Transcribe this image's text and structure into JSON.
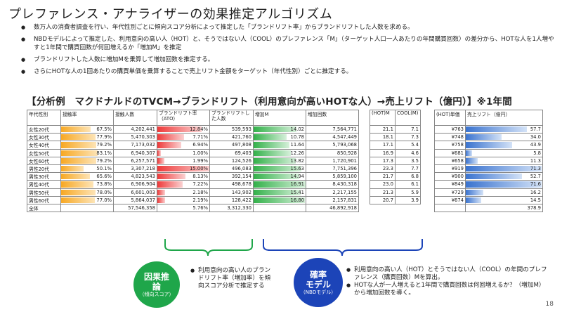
{
  "title": "プレファレンス・アナライザーの効果推定アルゴリズム",
  "bullets": [
    "数万人の消費者調査を行い、年代性別ごとに傾向スコア分析によって推定した「ブランドリフト率」からブランドリフトした人数を求める。",
    "NBDモデルによって推定した、利用意向の高い人（HOT）と、そうではない人（COOL）のプレファレンス「M」（ターゲット人口一人あたりの年間購買回数）の差分から、HOTな人を1人増やすと1年間で購買回数が何回増えるか「増加M」を推定",
    "ブランドリフトした人数に増加Mを乗算して増加回数を推定する。",
    "さらにHOTな人の1回あたりの購買単価を乗算することで売上リフト金額をターゲット（年代性別）ごとに推定する。"
  ],
  "subtitle": "【分析例　マクドナルドのTVCM→ブランドリフト（利用意向が高いHOTな人）→売上リフト（億円）】※1年間",
  "main_table": {
    "headers": [
      "年代性別",
      "接触率",
      "接触人数",
      "ブランドリフト率（ATO）",
      "ブランドリフトした人数",
      "増加M",
      "増加回数"
    ],
    "rows": [
      {
        "seg": "女性20代",
        "rate": "67.5%",
        "rate_v": 67.5,
        "reach": "4,202,441",
        "ato": "12.84%",
        "ato_v": 12.84,
        "lifted": "539,593",
        "incm": "14.02",
        "incm_v": 14.02,
        "count": "7,564,771"
      },
      {
        "seg": "女性30代",
        "rate": "77.9%",
        "rate_v": 77.9,
        "reach": "5,470,303",
        "ato": "7.71%",
        "ato_v": 7.71,
        "lifted": "421,760",
        "incm": "10.78",
        "incm_v": 10.78,
        "count": "4,547,449"
      },
      {
        "seg": "女性40代",
        "rate": "79.2%",
        "rate_v": 79.2,
        "reach": "7,173,032",
        "ato": "6.94%",
        "ato_v": 6.94,
        "lifted": "497,808",
        "incm": "11.64",
        "incm_v": 11.64,
        "count": "5,793,068"
      },
      {
        "seg": "女性50代",
        "rate": "83.1%",
        "rate_v": 83.1,
        "reach": "6,940,307",
        "ato": "1.00%",
        "ato_v": 1.0,
        "lifted": "69,403",
        "incm": "12.26",
        "incm_v": 12.26,
        "count": "850,928"
      },
      {
        "seg": "女性60代",
        "rate": "79.2%",
        "rate_v": 79.2,
        "reach": "6,257,571",
        "ato": "1.99%",
        "ato_v": 1.99,
        "lifted": "124,526",
        "incm": "13.82",
        "incm_v": 13.82,
        "count": "1,720,901"
      },
      {
        "seg": "男性20代",
        "rate": "50.1%",
        "rate_v": 50.1,
        "reach": "3,307,218",
        "ato": "15.00%",
        "ato_v": 15.0,
        "lifted": "496,083",
        "incm": "15.63",
        "incm_v": 15.63,
        "count": "7,751,396"
      },
      {
        "seg": "男性30代",
        "rate": "65.6%",
        "rate_v": 65.6,
        "reach": "4,823,543",
        "ato": "8.13%",
        "ato_v": 8.13,
        "lifted": "392,154",
        "incm": "14.94",
        "incm_v": 14.94,
        "count": "5,859,100"
      },
      {
        "seg": "男性40代",
        "rate": "73.8%",
        "rate_v": 73.8,
        "reach": "6,906,904",
        "ato": "7.22%",
        "ato_v": 7.22,
        "lifted": "498,678",
        "incm": "16.91",
        "incm_v": 16.91,
        "count": "8,430,318"
      },
      {
        "seg": "男性50代",
        "rate": "78.0%",
        "rate_v": 78.0,
        "reach": "6,601,003",
        "ato": "2.18%",
        "ato_v": 2.18,
        "lifted": "143,902",
        "incm": "15.41",
        "incm_v": 15.41,
        "count": "2,217,155"
      },
      {
        "seg": "男性60代",
        "rate": "77.0%",
        "rate_v": 77.0,
        "reach": "5,864,037",
        "ato": "2.19%",
        "ato_v": 2.19,
        "lifted": "128,422",
        "incm": "16.80",
        "incm_v": 16.8,
        "count": "2,157,831"
      }
    ],
    "total": {
      "seg": "全体",
      "reach": "57,546,358",
      "ato": "5.76%",
      "lifted": "3,312,330",
      "count": "46,892,918"
    }
  },
  "mid_table": {
    "headers": [
      "(HOT)M",
      "COOL(M)"
    ],
    "rows": [
      [
        "21.1",
        "7.1"
      ],
      [
        "18.1",
        "7.3"
      ],
      [
        "17.1",
        "5.4"
      ],
      [
        "16.9",
        "4.6"
      ],
      [
        "17.3",
        "3.5"
      ],
      [
        "23.3",
        "7.7"
      ],
      [
        "21.7",
        "6.8"
      ],
      [
        "23.0",
        "6.1"
      ],
      [
        "21.3",
        "5.9"
      ],
      [
        "20.7",
        "3.9"
      ]
    ]
  },
  "right_table": {
    "headers": [
      "(HOT)単価",
      "売上リフト（億円）"
    ],
    "rows": [
      {
        "price": "¥763",
        "lift": "57.7",
        "lift_v": 57.7
      },
      {
        "price": "¥748",
        "lift": "34.0",
        "lift_v": 34.0
      },
      {
        "price": "¥758",
        "lift": "43.9",
        "lift_v": 43.9
      },
      {
        "price": "¥681",
        "lift": "5.8",
        "lift_v": 5.8
      },
      {
        "price": "¥658",
        "lift": "11.3",
        "lift_v": 11.3
      },
      {
        "price": "¥919",
        "lift": "71.3",
        "lift_v": 71.3
      },
      {
        "price": "¥900",
        "lift": "52.7",
        "lift_v": 52.7
      },
      {
        "price": "¥849",
        "lift": "71.6",
        "lift_v": 71.6
      },
      {
        "price": "¥729",
        "lift": "16.2",
        "lift_v": 16.2
      },
      {
        "price": "¥674",
        "lift": "14.5",
        "lift_v": 14.5
      }
    ],
    "total": "378.9"
  },
  "colors": {
    "green": "#1fa64a",
    "blue": "#1c44b8",
    "orange": "#f7a823",
    "red": "#ee3a3a"
  },
  "causal": {
    "label1": "因果推",
    "label2": "論",
    "sub": "（傾向スコア）",
    "notes": [
      "利用意向の高い人のブランドリフト率（増加率）を傾向スコア分析で推定する"
    ]
  },
  "prob": {
    "label1": "確率",
    "label2": "モデル",
    "sub": "（NBDモデル）",
    "notes": [
      "利用意向の高い人（HOT）とそうではない人（COOL）の年間のプレファレンス（購買回数）Mを算出。",
      "HOTな人が一人増えると1年間で購買回数は何回増えるか？（増加M）から増加回数を導く。"
    ]
  },
  "page_number": "18"
}
